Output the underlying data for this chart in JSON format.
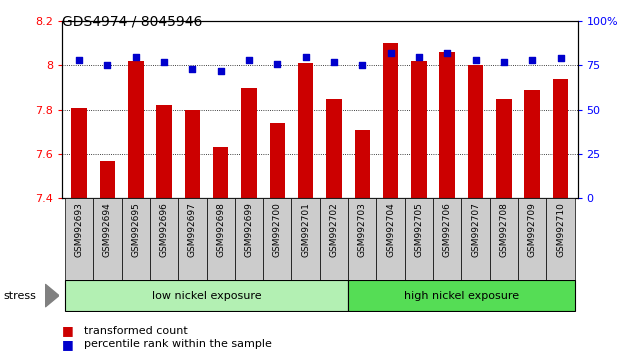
{
  "title": "GDS4974 / 8045946",
  "samples": [
    "GSM992693",
    "GSM992694",
    "GSM992695",
    "GSM992696",
    "GSM992697",
    "GSM992698",
    "GSM992699",
    "GSM992700",
    "GSM992701",
    "GSM992702",
    "GSM992703",
    "GSM992704",
    "GSM992705",
    "GSM992706",
    "GSM992707",
    "GSM992708",
    "GSM992709",
    "GSM992710"
  ],
  "transformed_count": [
    7.81,
    7.57,
    8.02,
    7.82,
    7.8,
    7.63,
    7.9,
    7.74,
    8.01,
    7.85,
    7.71,
    8.1,
    8.02,
    8.06,
    8.0,
    7.85,
    7.89,
    7.94
  ],
  "percentile_rank": [
    78,
    75,
    80,
    77,
    73,
    72,
    78,
    76,
    80,
    77,
    75,
    82,
    80,
    82,
    78,
    77,
    78,
    79
  ],
  "ylim_left": [
    7.4,
    8.2
  ],
  "ylim_right": [
    0,
    100
  ],
  "yticks_left": [
    7.4,
    7.6,
    7.8,
    8.0,
    8.2
  ],
  "ytick_labels_left": [
    "7.4",
    "7.6",
    "7.8",
    "8",
    "8.2"
  ],
  "yticks_right": [
    0,
    25,
    50,
    75,
    100
  ],
  "ytick_labels_right": [
    "0",
    "25",
    "50",
    "75",
    "100%"
  ],
  "bar_color": "#cc0000",
  "dot_color": "#0000cc",
  "group1_label": "low nickel exposure",
  "group2_label": "high nickel exposure",
  "group1_count": 10,
  "group2_count": 8,
  "stress_label": "stress",
  "legend_bar": "transformed count",
  "legend_dot": "percentile rank within the sample",
  "plot_bg": "#ffffff",
  "group1_color": "#b3f0b3",
  "group2_color": "#55dd55",
  "xticklabel_bg": "#cccccc"
}
